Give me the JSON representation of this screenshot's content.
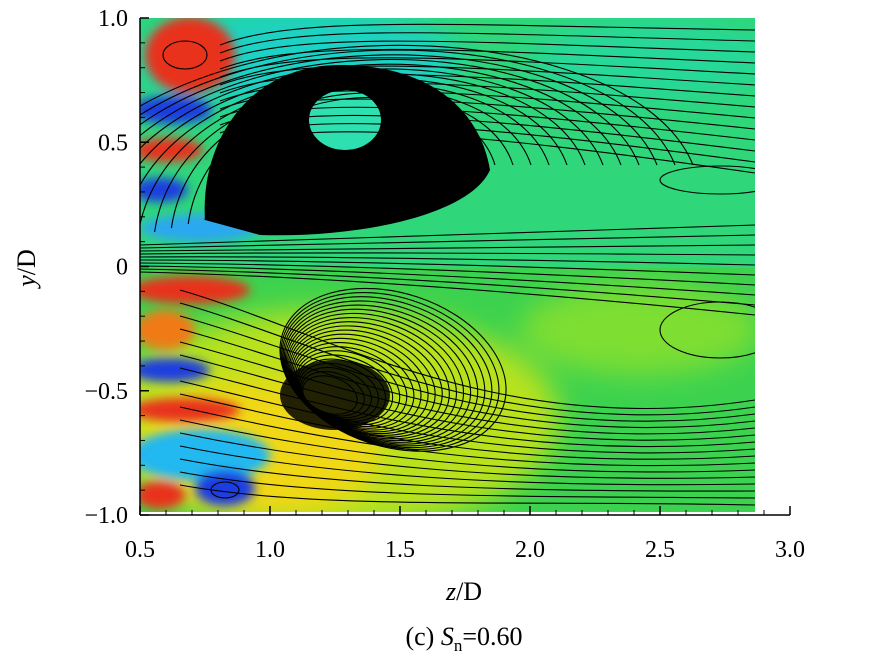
{
  "chart_data": {
    "type": "contour",
    "xlabel": {
      "symbol": "z",
      "suffix": "/D"
    },
    "ylabel": {
      "symbol": "y",
      "suffix": "/D"
    },
    "caption": {
      "prefix": "(c) ",
      "symbol": "S",
      "subscript": "n",
      "suffix": "=0.60"
    },
    "xlim": [
      0.5,
      3.0
    ],
    "ylim": [
      -1.0,
      1.0
    ],
    "xticks": [
      0.5,
      {
        "value": 1,
        "label": "1.0"
      },
      1.5,
      {
        "value": 2,
        "label": "2.0"
      },
      2.5,
      {
        "value": 3,
        "label": "3.0"
      }
    ],
    "yticks": [
      {
        "value": -1,
        "label": "−1.0"
      },
      {
        "value": -0.5,
        "label": "−0.5"
      },
      0,
      0.5,
      {
        "value": 1,
        "label": "1.0"
      }
    ]
  }
}
